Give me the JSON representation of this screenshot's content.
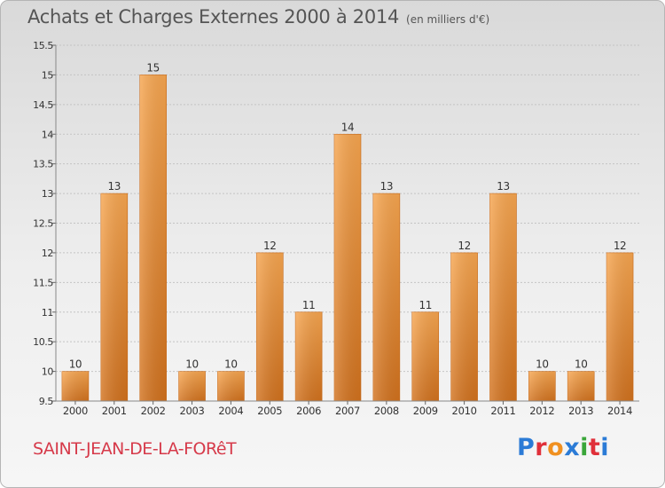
{
  "header": {
    "title": "Achats et Charges Externes 2000 à 2014",
    "subtitle": "(en milliers d'€)"
  },
  "footer": {
    "commune": "SAINT-JEAN-DE-LA-FORêT",
    "brand": "Proxiti",
    "brand_colors": [
      "#2b7bd6",
      "#e0303a",
      "#f09020",
      "#2b7bd6",
      "#3aa63a",
      "#e0303a",
      "#2b7bd6"
    ]
  },
  "chart_data": {
    "type": "bar",
    "title": "Achats et Charges Externes 2000 à 2014",
    "subtitle": "(en milliers d'€)",
    "xlabel": "",
    "ylabel": "",
    "categories": [
      "2000",
      "2001",
      "2002",
      "2003",
      "2004",
      "2005",
      "2006",
      "2007",
      "2008",
      "2009",
      "2010",
      "2011",
      "2012",
      "2013",
      "2014"
    ],
    "values": [
      10,
      13,
      15,
      10,
      10,
      12,
      11,
      14,
      13,
      11,
      12,
      13,
      10,
      10,
      12
    ],
    "data_labels": [
      "10",
      "13",
      "15",
      "10",
      "10",
      "12",
      "11",
      "14",
      "13",
      "11",
      "12",
      "13",
      "10",
      "10",
      "12"
    ],
    "ylim": [
      9.5,
      15.5
    ],
    "yticks": [
      9.5,
      10,
      10.5,
      11,
      11.5,
      12,
      12.5,
      13,
      13.5,
      14,
      14.5,
      15,
      15.5
    ],
    "ytick_labels": [
      "9.5",
      "10",
      "10.5",
      "11",
      "11.5",
      "12",
      "12.5",
      "13",
      "13.5",
      "14",
      "14.5",
      "15",
      "15.5"
    ],
    "grid": true,
    "bar_color_light": "#f7a650",
    "bar_color_dark": "#d2721e"
  }
}
